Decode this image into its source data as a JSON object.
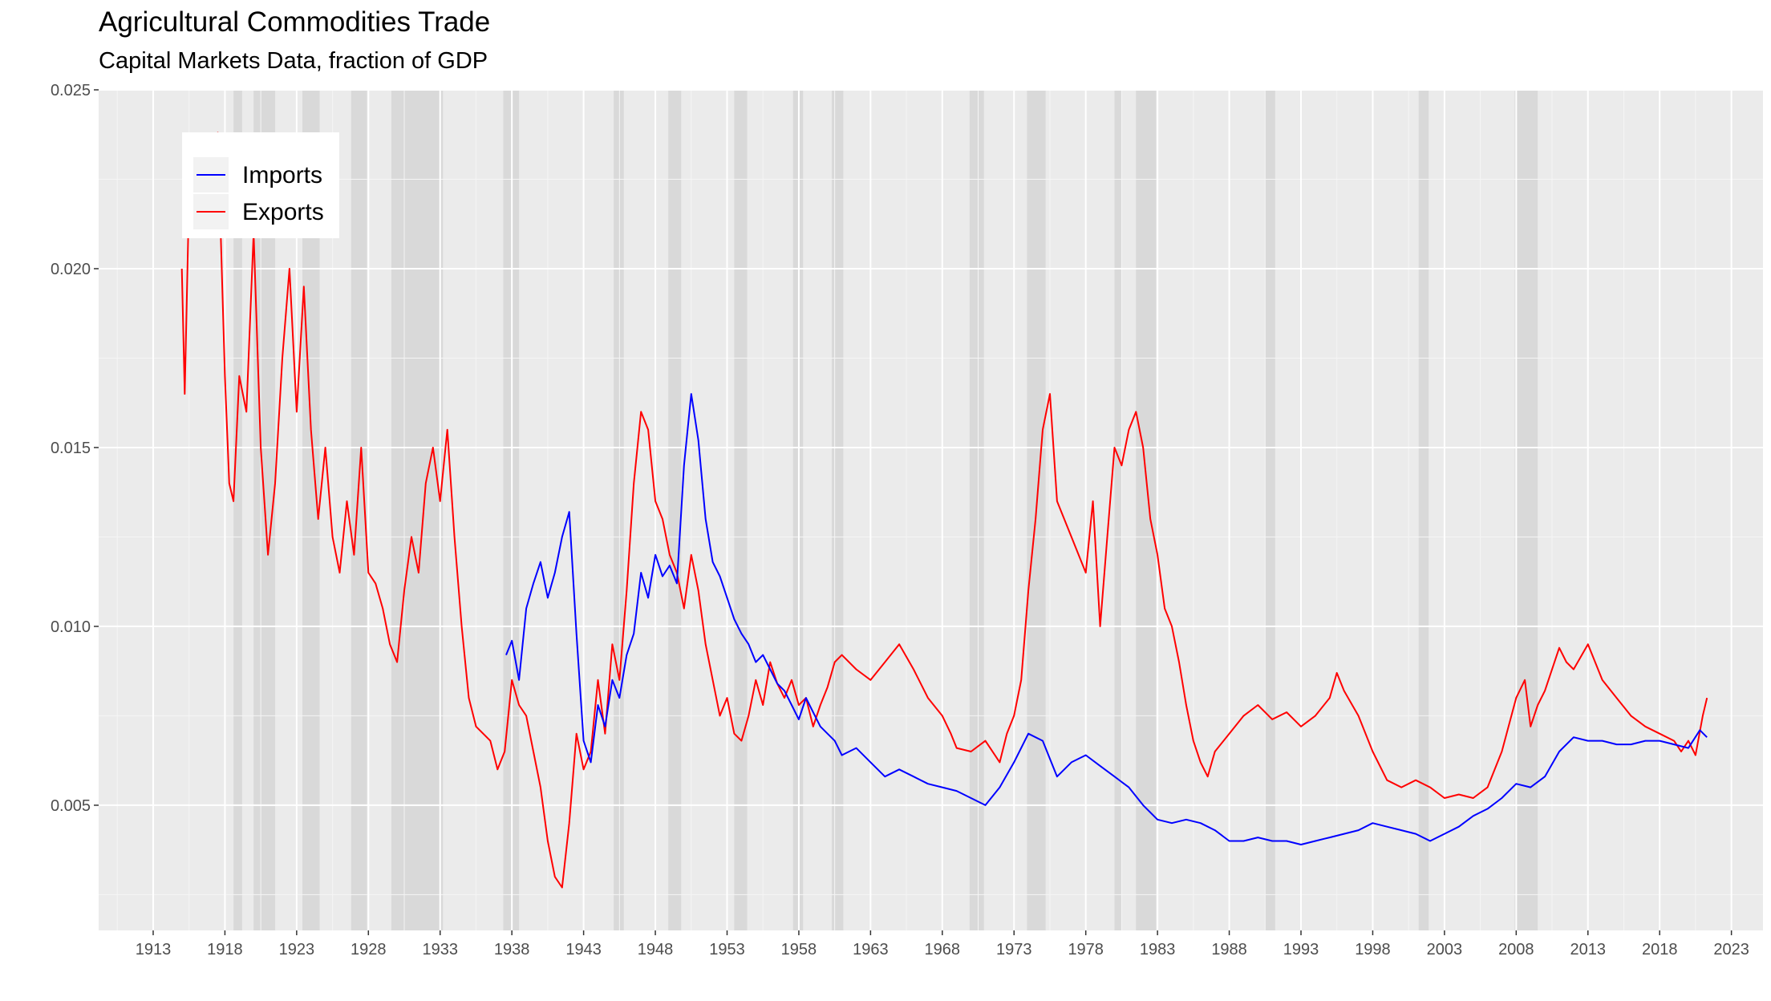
{
  "chart_data": {
    "type": "line",
    "title": "Agricultural Commodities Trade",
    "subtitle": "Capital Markets Data, fraction of GDP",
    "xlabel": "",
    "ylabel": "",
    "xlim": [
      1909.2,
      2025.2
    ],
    "ylim": [
      0.0015,
      0.025
    ],
    "x_ticks": [
      "1913",
      "1918",
      "1923",
      "1928",
      "1933",
      "1938",
      "1943",
      "1948",
      "1953",
      "1958",
      "1963",
      "1968",
      "1973",
      "1978",
      "1983",
      "1988",
      "1993",
      "1998",
      "2003",
      "2008",
      "2013",
      "2018",
      "2023"
    ],
    "y_ticks": [
      "0.005",
      "0.010",
      "0.015",
      "0.020",
      "0.025"
    ],
    "grid": true,
    "legend_position": "top-left",
    "recession_shading": [
      [
        1918.6,
        1919.2
      ],
      [
        1920.0,
        1921.5
      ],
      [
        1923.4,
        1924.6
      ],
      [
        1926.8,
        1927.9
      ],
      [
        1929.6,
        1933.2
      ],
      [
        1937.4,
        1938.5
      ],
      [
        1945.1,
        1945.8
      ],
      [
        1948.9,
        1949.8
      ],
      [
        1953.5,
        1954.4
      ],
      [
        1957.6,
        1958.3
      ],
      [
        1960.3,
        1961.1
      ],
      [
        1969.9,
        1970.9
      ],
      [
        1973.9,
        1975.2
      ],
      [
        1980.0,
        1980.5
      ],
      [
        1981.5,
        1982.9
      ],
      [
        1990.5,
        1991.2
      ],
      [
        2001.2,
        2001.9
      ],
      [
        2007.9,
        2009.5
      ]
    ],
    "series": [
      {
        "name": "Imports",
        "color": "#0000ff",
        "x": [
          1937.6,
          1938.0,
          1938.5,
          1939.0,
          1939.5,
          1940.0,
          1940.5,
          1941.0,
          1941.5,
          1942.0,
          1942.5,
          1943.0,
          1943.5,
          1944.0,
          1944.5,
          1945.0,
          1945.5,
          1946.0,
          1946.5,
          1947.0,
          1947.5,
          1948.0,
          1948.5,
          1949.0,
          1949.5,
          1950.0,
          1950.5,
          1951.0,
          1951.5,
          1952.0,
          1952.5,
          1953.0,
          1953.5,
          1954.0,
          1954.5,
          1955.0,
          1955.5,
          1956.0,
          1956.5,
          1957.0,
          1957.5,
          1958.0,
          1958.5,
          1959.0,
          1959.5,
          1960.0,
          1960.5,
          1961.0,
          1962.0,
          1963.0,
          1964.0,
          1965.0,
          1966.0,
          1967.0,
          1968.0,
          1969.0,
          1970.0,
          1971.0,
          1972.0,
          1973.0,
          1974.0,
          1975.0,
          1976.0,
          1977.0,
          1978.0,
          1979.0,
          1980.0,
          1981.0,
          1982.0,
          1983.0,
          1984.0,
          1985.0,
          1986.0,
          1987.0,
          1988.0,
          1989.0,
          1990.0,
          1991.0,
          1992.0,
          1993.0,
          1994.0,
          1995.0,
          1996.0,
          1997.0,
          1998.0,
          1999.0,
          2000.0,
          2001.0,
          2002.0,
          2003.0,
          2004.0,
          2005.0,
          2006.0,
          2007.0,
          2008.0,
          2009.0,
          2010.0,
          2011.0,
          2012.0,
          2013.0,
          2014.0,
          2015.0,
          2016.0,
          2017.0,
          2018.0,
          2019.0,
          2020.0,
          2020.8,
          2021.3
        ],
        "values": [
          0.0092,
          0.0096,
          0.0085,
          0.0105,
          0.0112,
          0.0118,
          0.0108,
          0.0115,
          0.0125,
          0.0132,
          0.0098,
          0.0068,
          0.0062,
          0.0078,
          0.0072,
          0.0085,
          0.008,
          0.0092,
          0.0098,
          0.0115,
          0.0108,
          0.012,
          0.0114,
          0.0117,
          0.0112,
          0.0145,
          0.0165,
          0.0152,
          0.013,
          0.0118,
          0.0114,
          0.0108,
          0.0102,
          0.0098,
          0.0095,
          0.009,
          0.0092,
          0.0088,
          0.0084,
          0.0082,
          0.0078,
          0.0074,
          0.008,
          0.0076,
          0.0072,
          0.007,
          0.0068,
          0.0064,
          0.0066,
          0.0062,
          0.0058,
          0.006,
          0.0058,
          0.0056,
          0.0055,
          0.0054,
          0.0052,
          0.005,
          0.0055,
          0.0062,
          0.007,
          0.0068,
          0.0058,
          0.0062,
          0.0064,
          0.0061,
          0.0058,
          0.0055,
          0.005,
          0.0046,
          0.0045,
          0.0046,
          0.0045,
          0.0043,
          0.004,
          0.004,
          0.0041,
          0.004,
          0.004,
          0.0039,
          0.004,
          0.0041,
          0.0042,
          0.0043,
          0.0045,
          0.0044,
          0.0043,
          0.0042,
          0.004,
          0.0042,
          0.0044,
          0.0047,
          0.0049,
          0.0052,
          0.0056,
          0.0055,
          0.0058,
          0.0065,
          0.0069,
          0.0068,
          0.0068,
          0.0067,
          0.0067,
          0.0068,
          0.0068,
          0.0067,
          0.0066,
          0.0071,
          0.0069
        ]
      },
      {
        "name": "Exports",
        "color": "#ff0000",
        "x": [
          1915.0,
          1915.2,
          1915.5,
          1916.0,
          1916.5,
          1917.0,
          1917.5,
          1918.0,
          1918.3,
          1918.6,
          1919.0,
          1919.5,
          1920.0,
          1920.5,
          1921.0,
          1921.5,
          1922.0,
          1922.5,
          1923.0,
          1923.5,
          1924.0,
          1924.5,
          1925.0,
          1925.5,
          1926.0,
          1926.5,
          1927.0,
          1927.5,
          1928.0,
          1928.5,
          1929.0,
          1929.5,
          1930.0,
          1930.5,
          1931.0,
          1931.5,
          1932.0,
          1932.5,
          1933.0,
          1933.5,
          1934.0,
          1934.5,
          1935.0,
          1935.5,
          1936.0,
          1936.5,
          1937.0,
          1937.5,
          1938.0,
          1938.5,
          1939.0,
          1939.5,
          1940.0,
          1940.5,
          1941.0,
          1941.5,
          1942.0,
          1942.5,
          1943.0,
          1943.5,
          1944.0,
          1944.5,
          1945.0,
          1945.5,
          1946.0,
          1946.5,
          1947.0,
          1947.5,
          1948.0,
          1948.5,
          1949.0,
          1949.5,
          1950.0,
          1950.5,
          1951.0,
          1951.5,
          1952.0,
          1952.5,
          1953.0,
          1953.5,
          1954.0,
          1954.5,
          1955.0,
          1955.5,
          1956.0,
          1956.5,
          1957.0,
          1957.5,
          1958.0,
          1958.5,
          1959.0,
          1959.5,
          1960.0,
          1960.5,
          1961.0,
          1962.0,
          1963.0,
          1964.0,
          1965.0,
          1966.0,
          1967.0,
          1968.0,
          1968.6,
          1969.0,
          1970.0,
          1971.0,
          1972.0,
          1972.5,
          1973.0,
          1973.5,
          1974.0,
          1974.5,
          1975.0,
          1975.5,
          1976.0,
          1977.0,
          1978.0,
          1978.5,
          1979.0,
          1979.5,
          1980.0,
          1980.5,
          1981.0,
          1981.5,
          1982.0,
          1982.5,
          1983.0,
          1983.5,
          1984.0,
          1984.5,
          1985.0,
          1985.5,
          1986.0,
          1986.5,
          1987.0,
          1988.0,
          1989.0,
          1990.0,
          1991.0,
          1992.0,
          1993.0,
          1994.0,
          1995.0,
          1995.5,
          1996.0,
          1997.0,
          1998.0,
          1999.0,
          2000.0,
          2001.0,
          2002.0,
          2003.0,
          2004.0,
          2005.0,
          2006.0,
          2007.0,
          2008.0,
          2008.6,
          2009.0,
          2009.5,
          2010.0,
          2011.0,
          2011.5,
          2012.0,
          2013.0,
          2014.0,
          2015.0,
          2016.0,
          2017.0,
          2018.0,
          2019.0,
          2019.5,
          2020.0,
          2020.5,
          2021.0,
          2021.3
        ],
        "values": [
          0.02,
          0.0165,
          0.022,
          0.0215,
          0.021,
          0.0225,
          0.0238,
          0.017,
          0.014,
          0.0135,
          0.017,
          0.016,
          0.021,
          0.015,
          0.012,
          0.014,
          0.0175,
          0.02,
          0.016,
          0.0195,
          0.0155,
          0.013,
          0.015,
          0.0125,
          0.0115,
          0.0135,
          0.012,
          0.015,
          0.0115,
          0.0112,
          0.0105,
          0.0095,
          0.009,
          0.011,
          0.0125,
          0.0115,
          0.014,
          0.015,
          0.0135,
          0.0155,
          0.0125,
          0.01,
          0.008,
          0.0072,
          0.007,
          0.0068,
          0.006,
          0.0065,
          0.0085,
          0.0078,
          0.0075,
          0.0065,
          0.0055,
          0.004,
          0.003,
          0.0027,
          0.0045,
          0.007,
          0.006,
          0.0065,
          0.0085,
          0.007,
          0.0095,
          0.0085,
          0.011,
          0.014,
          0.016,
          0.0155,
          0.0135,
          0.013,
          0.012,
          0.0115,
          0.0105,
          0.012,
          0.011,
          0.0095,
          0.0085,
          0.0075,
          0.008,
          0.007,
          0.0068,
          0.0075,
          0.0085,
          0.0078,
          0.009,
          0.0084,
          0.008,
          0.0085,
          0.0078,
          0.008,
          0.0072,
          0.0078,
          0.0083,
          0.009,
          0.0092,
          0.0088,
          0.0085,
          0.009,
          0.0095,
          0.0088,
          0.008,
          0.0075,
          0.007,
          0.0066,
          0.0065,
          0.0068,
          0.0062,
          0.007,
          0.0075,
          0.0085,
          0.011,
          0.013,
          0.0155,
          0.0165,
          0.0135,
          0.0125,
          0.0115,
          0.0135,
          0.01,
          0.0125,
          0.015,
          0.0145,
          0.0155,
          0.016,
          0.015,
          0.013,
          0.012,
          0.0105,
          0.01,
          0.009,
          0.0078,
          0.0068,
          0.0062,
          0.0058,
          0.0065,
          0.007,
          0.0075,
          0.0078,
          0.0074,
          0.0076,
          0.0072,
          0.0075,
          0.008,
          0.0087,
          0.0082,
          0.0075,
          0.0065,
          0.0057,
          0.0055,
          0.0057,
          0.0055,
          0.0052,
          0.0053,
          0.0052,
          0.0055,
          0.0065,
          0.008,
          0.0085,
          0.0072,
          0.0078,
          0.0082,
          0.0094,
          0.009,
          0.0088,
          0.0095,
          0.0085,
          0.008,
          0.0075,
          0.0072,
          0.007,
          0.0068,
          0.0065,
          0.0068,
          0.0064,
          0.0075,
          0.008
        ]
      }
    ]
  }
}
